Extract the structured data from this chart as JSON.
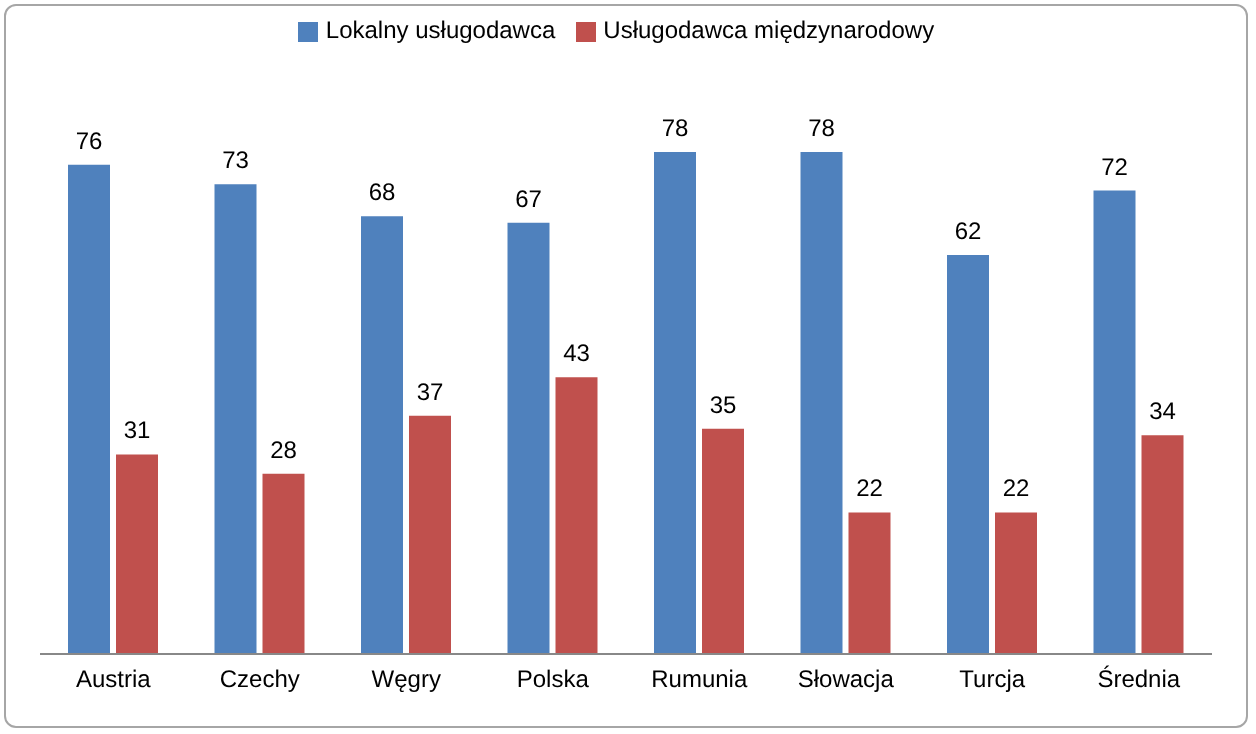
{
  "chart_data": {
    "type": "bar",
    "categories": [
      "Austria",
      "Czechy",
      "Węgry",
      "Polska",
      "Rumunia",
      "Słowacja",
      "Turcja",
      "Średnia"
    ],
    "series": [
      {
        "name": "Lokalny usługodawca",
        "color": "#4f81bd",
        "values": [
          76,
          73,
          68,
          67,
          78,
          78,
          62,
          72
        ]
      },
      {
        "name": "Usługodawca międzynarodowy",
        "color": "#c0504d",
        "values": [
          31,
          28,
          37,
          43,
          35,
          22,
          22,
          34
        ]
      }
    ],
    "tick_labels": "x",
    "data_labels": true,
    "legend": "top",
    "grid": false
  }
}
